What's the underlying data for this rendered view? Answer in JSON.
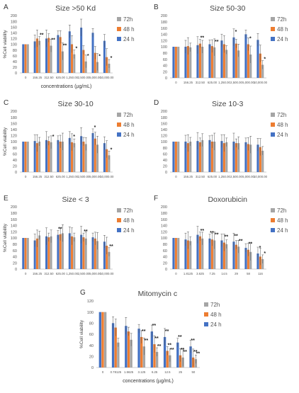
{
  "figure": {
    "series_colors": {
      "24 h": "#4472c4",
      "48 h": "#ed7d31",
      "72h": "#a5a5a5"
    }
  },
  "chart_data": [
    {
      "panel": "A",
      "type": "bar",
      "title": "Size >50 Kd",
      "xlabel": "concentrations (µg/mL)",
      "ylabel": "%Cell viability",
      "ylim": [
        0,
        200
      ],
      "yticks": [
        0,
        20,
        40,
        60,
        80,
        100,
        120,
        140,
        160,
        180,
        200
      ],
      "grid": false,
      "legend": "right",
      "categories": [
        "0",
        "156.25",
        "312.50",
        "625.00",
        "1,250.00",
        "2,500.00",
        "5,000.00",
        "10,000.00"
      ],
      "series": [
        {
          "name": "24 h",
          "values": [
            100,
            110,
            120,
            132,
            145,
            158,
            140,
            112
          ]
        },
        {
          "name": "48 h",
          "values": [
            100,
            120,
            122,
            125,
            100,
            80,
            70,
            55
          ]
        },
        {
          "name": "72h",
          "values": [
            100,
            112,
            95,
            75,
            65,
            40,
            38,
            32
          ]
        }
      ],
      "annotations": [
        "*",
        "*",
        "*",
        "*",
        "**",
        "**",
        "**"
      ]
    },
    {
      "panel": "B",
      "type": "bar",
      "title": "Size 50-30",
      "xlabel": "",
      "ylabel": "",
      "ylim": [
        0,
        200
      ],
      "yticks": [
        0,
        20,
        40,
        60,
        80,
        100,
        120,
        140,
        160,
        180,
        200
      ],
      "grid": false,
      "legend": "right",
      "categories": [
        "0",
        "156.25",
        "312.50",
        "625.00",
        "1,250.00",
        "2,500.00",
        "5,000.00",
        "10,000.00"
      ],
      "series": [
        {
          "name": "24 h",
          "values": [
            100,
            100,
            105,
            108,
            120,
            130,
            140,
            122
          ]
        },
        {
          "name": "48 h",
          "values": [
            100,
            102,
            110,
            102,
            108,
            110,
            108,
            78
          ]
        },
        {
          "name": "72h",
          "values": [
            100,
            98,
            100,
            98,
            90,
            88,
            75,
            42
          ]
        }
      ],
      "annotations": [
        "*",
        "*",
        "*",
        "**",
        "**"
      ]
    },
    {
      "panel": "C",
      "type": "bar",
      "title": "Size 30-10",
      "xlabel": "",
      "ylabel": "%Cell viability",
      "ylim": [
        0,
        200
      ],
      "yticks": [
        0,
        20,
        40,
        60,
        80,
        100,
        120,
        140,
        160,
        180,
        200
      ],
      "grid": false,
      "legend": "right",
      "categories": [
        "0",
        "156.25",
        "312.50",
        "625.00",
        "1,250.00",
        "2,500.00",
        "5,000.00",
        "10,000.00"
      ],
      "series": [
        {
          "name": "24 h",
          "values": [
            100,
            102,
            105,
            105,
            112,
            118,
            128,
            95
          ]
        },
        {
          "name": "48 h",
          "values": [
            100,
            95,
            102,
            100,
            98,
            100,
            110,
            75
          ]
        },
        {
          "name": "72h",
          "values": [
            100,
            100,
            98,
            100,
            95,
            92,
            90,
            55
          ]
        }
      ],
      "annotations": [
        "*",
        "*",
        "*",
        "*"
      ]
    },
    {
      "panel": "D",
      "type": "bar",
      "title": "Size 10-3",
      "xlabel": "",
      "ylabel": "",
      "ylim": [
        0,
        200
      ],
      "yticks": [
        0,
        20,
        40,
        60,
        80,
        100,
        120,
        140,
        160,
        180,
        200
      ],
      "grid": false,
      "legend": "right",
      "categories": [
        "0",
        "156.25",
        "312.50",
        "625.00",
        "1,250.00",
        "2,500.00",
        "5,000.00",
        "10,000.00"
      ],
      "series": [
        {
          "name": "24 h",
          "values": [
            100,
            100,
            102,
            105,
            102,
            100,
            98,
            90
          ]
        },
        {
          "name": "48 h",
          "values": [
            100,
            95,
            98,
            100,
            95,
            95,
            92,
            82
          ]
        },
        {
          "name": "72h",
          "values": [
            100,
            100,
            105,
            100,
            98,
            95,
            90,
            70
          ]
        }
      ],
      "annotations": []
    },
    {
      "panel": "E",
      "type": "bar",
      "title": "Size < 3",
      "xlabel": "",
      "ylabel": "%Cell viability",
      "ylim": [
        0,
        200
      ],
      "yticks": [
        0,
        20,
        40,
        60,
        80,
        100,
        120,
        140,
        160,
        180,
        200
      ],
      "grid": false,
      "legend": "right",
      "categories": [
        "0",
        "156.25",
        "312.50",
        "625.00",
        "1,250.00",
        "2,500.00",
        "5,000.00",
        "10,000.00"
      ],
      "series": [
        {
          "name": "24 h",
          "values": [
            100,
            92,
            105,
            110,
            115,
            110,
            102,
            88
          ]
        },
        {
          "name": "48 h",
          "values": [
            100,
            98,
            102,
            112,
            105,
            102,
            98,
            75
          ]
        },
        {
          "name": "72h",
          "values": [
            100,
            108,
            105,
            115,
            102,
            98,
            90,
            55
          ]
        }
      ],
      "annotations": [
        "**",
        "**",
        "**"
      ]
    },
    {
      "panel": "F",
      "type": "bar",
      "title": "Doxorubicin",
      "xlabel": "",
      "ylabel": "",
      "ylim": [
        0,
        200
      ],
      "yticks": [
        0,
        20,
        40,
        60,
        80,
        100,
        120,
        140,
        160,
        180,
        200
      ],
      "grid": false,
      "legend": "right",
      "categories": [
        "0",
        "1.8125",
        "3.625",
        "7.25",
        "14.5",
        "29",
        "58",
        "116"
      ],
      "series": [
        {
          "name": "24 h",
          "values": [
            100,
            95,
            110,
            98,
            92,
            88,
            68,
            50
          ]
        },
        {
          "name": "48 h",
          "values": [
            100,
            92,
            105,
            95,
            85,
            78,
            62,
            40
          ]
        },
        {
          "name": "72h",
          "values": [
            100,
            90,
            98,
            92,
            80,
            72,
            55,
            32
          ]
        }
      ],
      "annotations": [
        "*",
        "*",
        "**",
        "**",
        "**",
        "**",
        "**",
        "**",
        "**"
      ]
    },
    {
      "panel": "G",
      "type": "bar",
      "title": "Mitomycin c",
      "xlabel": "concentrations (µg/mL)",
      "ylabel": "%Cell viability",
      "ylim": [
        0,
        120
      ],
      "yticks": [
        0,
        20,
        40,
        60,
        80,
        100,
        120
      ],
      "grid": false,
      "legend": "right",
      "categories": [
        "0",
        "0.78125",
        "1.5625",
        "3.125",
        "6.25",
        "12.5",
        "25",
        "50"
      ],
      "series": [
        {
          "name": "24 h",
          "values": [
            100,
            80,
            75,
            70,
            65,
            55,
            45,
            38
          ]
        },
        {
          "name": "48 h",
          "values": [
            100,
            72,
            65,
            55,
            42,
            30,
            22,
            18
          ]
        },
        {
          "name": "72h",
          "values": [
            100,
            45,
            50,
            38,
            28,
            22,
            18,
            15
          ]
        }
      ],
      "annotations": [
        "**",
        "**",
        "**",
        "**",
        "**",
        "**",
        "**",
        "**",
        "**",
        "**",
        "**",
        "**",
        "**",
        "**"
      ]
    }
  ]
}
